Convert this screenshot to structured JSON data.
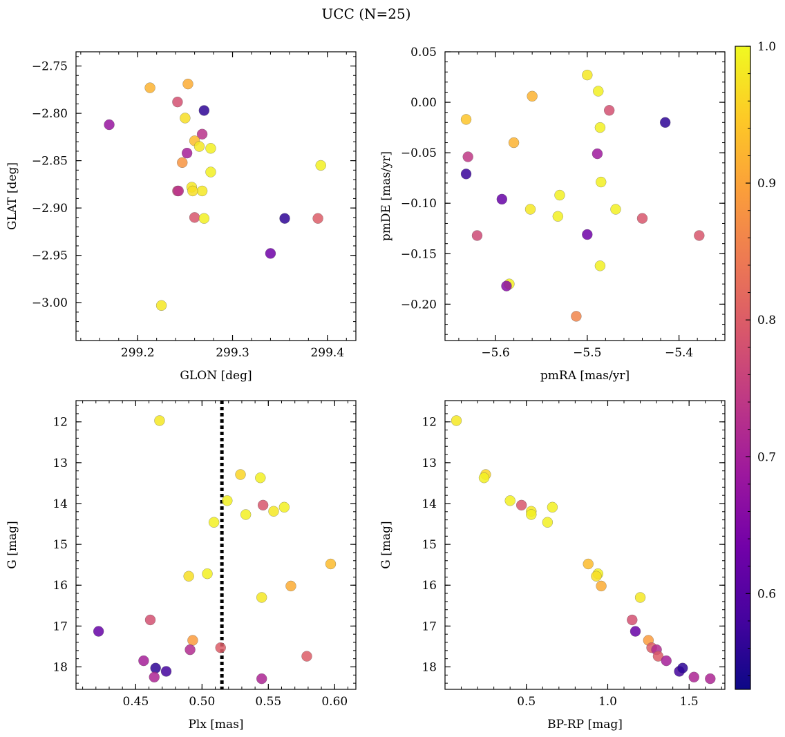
{
  "figure": {
    "title": "UCC (N=25)"
  },
  "colorbar": {
    "range": [
      0.53,
      1.0
    ],
    "ticks": [
      {
        "v": 0.6,
        "label": "0.6"
      },
      {
        "v": 0.7,
        "label": "0.7"
      },
      {
        "v": 0.8,
        "label": "0.8"
      },
      {
        "v": 0.9,
        "label": "0.9"
      },
      {
        "v": 1.0,
        "label": "1.0"
      }
    ],
    "colormap": [
      "#0d0887",
      "#46039f",
      "#7201a8",
      "#9c179e",
      "#bd3786",
      "#d8576b",
      "#ed7953",
      "#fb9f3a",
      "#fdca26",
      "#f0f921"
    ]
  },
  "chart_data": [
    {
      "type": "scatter",
      "title": "",
      "xlabel": "GLON [deg]",
      "ylabel": "GLAT [deg]",
      "xlim": [
        299.135,
        299.43
      ],
      "ylim": [
        -3.04,
        -2.735
      ],
      "yinvert": false,
      "xticks": [
        {
          "v": 299.2,
          "label": "299.2"
        },
        {
          "v": 299.3,
          "label": "299.3"
        },
        {
          "v": 299.4,
          "label": "299.4"
        }
      ],
      "yticks": [
        {
          "v": -2.75,
          "label": "−2.75"
        },
        {
          "v": -2.8,
          "label": "−2.80"
        },
        {
          "v": -2.85,
          "label": "−2.85"
        },
        {
          "v": -2.9,
          "label": "−2.90"
        },
        {
          "v": -2.95,
          "label": "−2.95"
        },
        {
          "v": -3.0,
          "label": "−3.00"
        }
      ],
      "x": [
        299.17,
        299.213,
        299.242,
        299.253,
        299.27,
        299.25,
        299.268,
        299.252,
        299.26,
        299.265,
        299.277,
        299.247,
        299.277,
        299.242,
        299.257,
        299.268,
        299.26,
        299.27,
        299.355,
        299.34,
        299.39,
        299.393,
        299.225,
        299.243,
        299.258
      ],
      "y": [
        -2.812,
        -2.773,
        -2.788,
        -2.769,
        -2.797,
        -2.805,
        -2.822,
        -2.842,
        -2.829,
        -2.835,
        -2.837,
        -2.852,
        -2.862,
        -2.882,
        -2.878,
        -2.882,
        -2.91,
        -2.911,
        -2.911,
        -2.948,
        -2.911,
        -2.855,
        -3.003,
        -2.882,
        -2.882
      ],
      "c": [
        0.68,
        0.92,
        0.78,
        0.91,
        0.56,
        0.97,
        0.73,
        0.7,
        0.93,
        0.98,
        0.99,
        0.88,
        0.99,
        0.77,
        0.98,
        0.98,
        0.79,
        0.99,
        0.56,
        0.63,
        0.8,
        0.99,
        0.98,
        0.73,
        0.97
      ]
    },
    {
      "type": "scatter",
      "title": "",
      "xlabel": "pmRA [mas/yr]",
      "ylabel": "pmDE [mas/yr]",
      "xlim": [
        -5.655,
        -5.35
      ],
      "ylim": [
        -0.236,
        0.05
      ],
      "yinvert": false,
      "xticks": [
        {
          "v": -5.6,
          "label": "−5.6"
        },
        {
          "v": -5.5,
          "label": "−5.5"
        },
        {
          "v": -5.4,
          "label": "−5.4"
        }
      ],
      "yticks": [
        {
          "v": 0.05,
          "label": "0.05"
        },
        {
          "v": 0.0,
          "label": "0.00"
        },
        {
          "v": -0.05,
          "label": "−0.05"
        },
        {
          "v": -0.1,
          "label": "−0.10"
        },
        {
          "v": -0.15,
          "label": "−0.15"
        },
        {
          "v": -0.2,
          "label": "−0.20"
        }
      ],
      "x": [
        -5.5,
        -5.488,
        -5.56,
        -5.476,
        -5.632,
        -5.415,
        -5.486,
        -5.58,
        -5.63,
        -5.489,
        -5.632,
        -5.485,
        -5.593,
        -5.562,
        -5.53,
        -5.469,
        -5.532,
        -5.44,
        -5.62,
        -5.5,
        -5.378,
        -5.486,
        -5.585,
        -5.588,
        -5.512
      ],
      "y": [
        0.027,
        0.011,
        0.006,
        -0.008,
        -0.017,
        -0.02,
        -0.025,
        -0.04,
        -0.054,
        -0.051,
        -0.071,
        -0.079,
        -0.096,
        -0.106,
        -0.092,
        -0.106,
        -0.113,
        -0.115,
        -0.132,
        -0.131,
        -0.132,
        -0.162,
        -0.18,
        -0.182,
        -0.212
      ],
      "c": [
        0.98,
        0.99,
        0.92,
        0.78,
        0.94,
        0.56,
        0.99,
        0.92,
        0.74,
        0.69,
        0.57,
        0.99,
        0.62,
        0.98,
        0.99,
        0.99,
        0.99,
        0.79,
        0.77,
        0.63,
        0.79,
        0.99,
        0.99,
        0.66,
        0.86
      ]
    },
    {
      "type": "scatter",
      "title": "",
      "xlabel": "Plx [mas]",
      "ylabel": "G [mag]",
      "xlim": [
        0.405,
        0.616
      ],
      "ylim": [
        18.55,
        11.48
      ],
      "yinvert": true,
      "vline": 0.515,
      "xticks": [
        {
          "v": 0.45,
          "label": "0.45"
        },
        {
          "v": 0.5,
          "label": "0.50"
        },
        {
          "v": 0.55,
          "label": "0.55"
        },
        {
          "v": 0.6,
          "label": "0.60"
        }
      ],
      "yticks": [
        {
          "v": 12,
          "label": "12"
        },
        {
          "v": 13,
          "label": "13"
        },
        {
          "v": 14,
          "label": "14"
        },
        {
          "v": 15,
          "label": "15"
        },
        {
          "v": 16,
          "label": "16"
        },
        {
          "v": 17,
          "label": "17"
        },
        {
          "v": 18,
          "label": "18"
        }
      ],
      "x": [
        0.468,
        0.529,
        0.544,
        0.519,
        0.562,
        0.546,
        0.533,
        0.554,
        0.509,
        0.597,
        0.49,
        0.504,
        0.567,
        0.545,
        0.461,
        0.422,
        0.493,
        0.491,
        0.514,
        0.579,
        0.456,
        0.465,
        0.473,
        0.464,
        0.545
      ],
      "y": [
        11.97,
        13.29,
        13.37,
        13.93,
        14.09,
        14.04,
        14.27,
        14.19,
        14.46,
        15.48,
        15.78,
        15.72,
        16.02,
        16.3,
        16.85,
        17.13,
        17.35,
        17.58,
        17.53,
        17.74,
        17.85,
        18.03,
        18.11,
        18.25,
        18.29
      ],
      "c": [
        0.98,
        0.96,
        0.99,
        0.99,
        0.99,
        0.79,
        0.99,
        0.98,
        0.99,
        0.93,
        0.97,
        0.99,
        0.91,
        0.98,
        0.78,
        0.62,
        0.89,
        0.72,
        0.8,
        0.8,
        0.7,
        0.56,
        0.58,
        0.71,
        0.71
      ]
    },
    {
      "type": "scatter",
      "title": "",
      "xlabel": "BP-RP [mag]",
      "ylabel": "G [mag]",
      "xlim": [
        0.0,
        1.72
      ],
      "ylim": [
        18.55,
        11.48
      ],
      "yinvert": true,
      "xticks": [
        {
          "v": 0.5,
          "label": "0.5"
        },
        {
          "v": 1.0,
          "label": "1.0"
        },
        {
          "v": 1.5,
          "label": "1.5"
        }
      ],
      "yticks": [
        {
          "v": 12,
          "label": "12"
        },
        {
          "v": 13,
          "label": "13"
        },
        {
          "v": 14,
          "label": "14"
        },
        {
          "v": 15,
          "label": "15"
        },
        {
          "v": 16,
          "label": "16"
        },
        {
          "v": 17,
          "label": "17"
        },
        {
          "v": 18,
          "label": "18"
        }
      ],
      "x": [
        0.07,
        0.25,
        0.24,
        0.4,
        0.53,
        0.66,
        0.53,
        0.63,
        0.88,
        0.94,
        0.93,
        0.96,
        1.2,
        1.15,
        1.17,
        1.25,
        1.27,
        1.3,
        1.31,
        1.36,
        1.44,
        1.46,
        1.53,
        1.63,
        0.47
      ],
      "y": [
        11.97,
        13.29,
        13.37,
        13.93,
        14.19,
        14.09,
        14.27,
        14.46,
        15.48,
        15.72,
        15.78,
        16.02,
        16.3,
        16.85,
        17.13,
        17.35,
        17.53,
        17.58,
        17.74,
        17.85,
        18.11,
        18.03,
        18.25,
        18.29,
        14.04
      ],
      "c": [
        0.98,
        0.96,
        0.99,
        0.99,
        0.98,
        0.99,
        0.99,
        0.99,
        0.93,
        0.99,
        0.97,
        0.91,
        0.98,
        0.78,
        0.62,
        0.89,
        0.8,
        0.72,
        0.8,
        0.7,
        0.58,
        0.56,
        0.71,
        0.71,
        0.79
      ]
    }
  ]
}
